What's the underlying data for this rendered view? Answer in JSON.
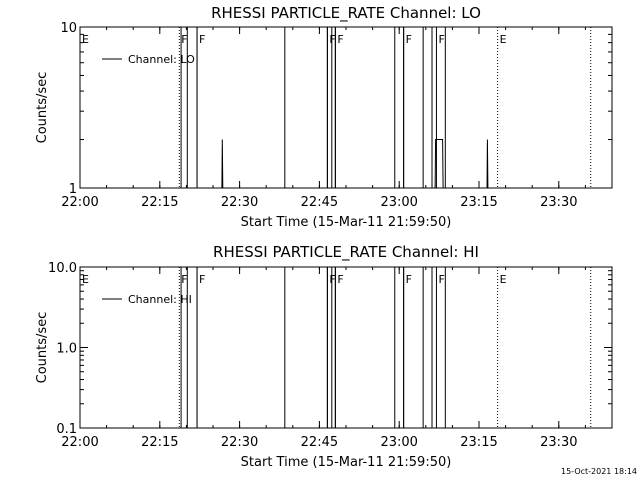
{
  "figure": {
    "timestamp": "15-Oct-2021 18:14"
  },
  "chart_data": [
    {
      "type": "line",
      "title": "RHESSI PARTICLE_RATE Channel: LO",
      "xlabel": "Start Time (15-Mar-11 21:59:50)",
      "ylabel": "Counts/sec",
      "y_scale": "log",
      "ylim": [
        1,
        10
      ],
      "y_ticks": [
        {
          "value": 1,
          "label": "1"
        },
        {
          "value": 10,
          "label": "10"
        }
      ],
      "x_ticks": [
        "22:00",
        "22:15",
        "22:30",
        "22:45",
        "23:00",
        "23:15",
        "23:30"
      ],
      "xlim": [
        "22:00",
        "23:40"
      ],
      "grid": false,
      "legend": {
        "position": "top-left",
        "entries": [
          "Channel: LO"
        ]
      },
      "series": [
        {
          "name": "Channel: LO",
          "points": [
            {
              "t": "22:26:40",
              "y": 1
            },
            {
              "t": "22:26:45",
              "y": 2
            },
            {
              "t": "22:26:50",
              "y": 1
            },
            {
              "t": "23:06:45",
              "y": 1
            },
            {
              "t": "23:06:50",
              "y": 2
            },
            {
              "t": "23:08:10",
              "y": 2
            },
            {
              "t": "23:08:15",
              "y": 1
            },
            {
              "t": "23:16:30",
              "y": 1
            },
            {
              "t": "23:16:35",
              "y": 2
            },
            {
              "t": "23:16:40",
              "y": 1
            }
          ]
        }
      ],
      "gaps": [
        [
          "22:19",
          "22:20:10"
        ],
        [
          "22:22",
          "22:38:30"
        ],
        [
          "22:46:30",
          "22:47:20"
        ],
        [
          "22:48",
          "22:59:10"
        ],
        [
          "23:00:50",
          "23:04:30"
        ],
        [
          "23:06:10",
          "23:08:40"
        ]
      ],
      "flags": [
        {
          "t": "22:00",
          "label": "E",
          "style": "dotted"
        },
        {
          "t": "22:18:40",
          "label": "F",
          "style": "dotted"
        },
        {
          "t": "22:22:00",
          "label": "F",
          "style": "solid"
        },
        {
          "t": "22:46:30",
          "label": "F",
          "style": "solid"
        },
        {
          "t": "22:48:00",
          "label": "F",
          "style": "solid"
        },
        {
          "t": "23:00:50",
          "label": "F",
          "style": "solid"
        },
        {
          "t": "23:07:00",
          "label": "F",
          "style": "solid"
        },
        {
          "t": "23:18:30",
          "label": "E",
          "style": "dotted"
        },
        {
          "t": "23:36:00",
          "label": "",
          "style": "dotted"
        }
      ]
    },
    {
      "type": "line",
      "title": "RHESSI PARTICLE_RATE Channel: HI",
      "xlabel": "Start Time (15-Mar-11 21:59:50)",
      "ylabel": "Counts/sec",
      "y_scale": "log",
      "ylim": [
        0.1,
        10
      ],
      "y_ticks": [
        {
          "value": 0.1,
          "label": "0.1"
        },
        {
          "value": 1,
          "label": "1.0"
        },
        {
          "value": 10,
          "label": "10.0"
        }
      ],
      "x_ticks": [
        "22:00",
        "22:15",
        "22:30",
        "22:45",
        "23:00",
        "23:15",
        "23:30"
      ],
      "xlim": [
        "22:00",
        "23:40"
      ],
      "grid": false,
      "legend": {
        "position": "top-left",
        "entries": [
          "Channel: HI"
        ]
      },
      "series": [
        {
          "name": "Channel: HI",
          "points": []
        }
      ],
      "gaps": [
        [
          "22:19",
          "22:20:10"
        ],
        [
          "22:22",
          "22:38:30"
        ],
        [
          "22:46:30",
          "22:47:20"
        ],
        [
          "22:48",
          "22:59:10"
        ],
        [
          "23:00:50",
          "23:04:30"
        ],
        [
          "23:06:10",
          "23:08:40"
        ]
      ],
      "flags": [
        {
          "t": "22:00",
          "label": "E",
          "style": "dotted"
        },
        {
          "t": "22:18:40",
          "label": "F",
          "style": "dotted"
        },
        {
          "t": "22:22:00",
          "label": "F",
          "style": "solid"
        },
        {
          "t": "22:46:30",
          "label": "F",
          "style": "solid"
        },
        {
          "t": "22:48:00",
          "label": "F",
          "style": "solid"
        },
        {
          "t": "23:00:50",
          "label": "F",
          "style": "solid"
        },
        {
          "t": "23:07:00",
          "label": "F",
          "style": "solid"
        },
        {
          "t": "23:18:30",
          "label": "E",
          "style": "dotted"
        },
        {
          "t": "23:36:00",
          "label": "",
          "style": "dotted"
        }
      ]
    }
  ]
}
